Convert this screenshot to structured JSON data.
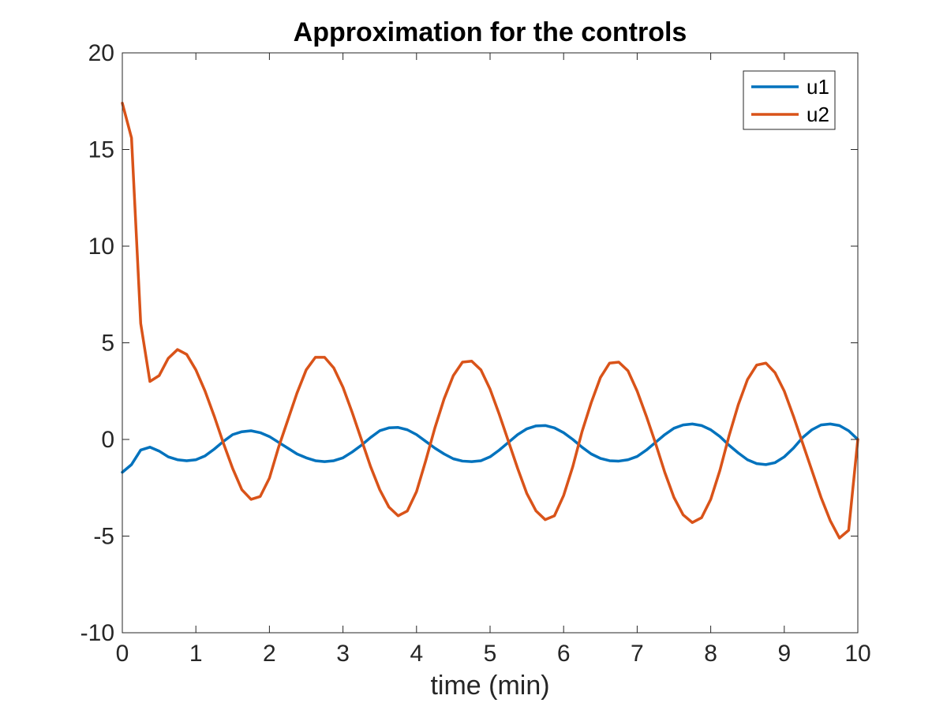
{
  "chart_data": {
    "type": "line",
    "title": "Approximation for the controls",
    "xlabel": "time (min)",
    "ylabel": "",
    "xlim": [
      0,
      10
    ],
    "ylim": [
      -10,
      20
    ],
    "xticks": [
      "0",
      "1",
      "2",
      "3",
      "4",
      "5",
      "6",
      "7",
      "8",
      "9",
      "10"
    ],
    "yticks": [
      "20",
      "15",
      "10",
      "5",
      "0",
      "-5",
      "-10"
    ],
    "grid": false,
    "legend_position": "top-right",
    "series": [
      {
        "name": "u1",
        "color": "#0072BD",
        "x": [
          0,
          0.125,
          0.25,
          0.375,
          0.5,
          0.625,
          0.75,
          0.875,
          1.0,
          1.125,
          1.25,
          1.375,
          1.5,
          1.625,
          1.75,
          1.875,
          2.0,
          2.125,
          2.25,
          2.375,
          2.5,
          2.625,
          2.75,
          2.875,
          3.0,
          3.125,
          3.25,
          3.375,
          3.5,
          3.625,
          3.75,
          3.875,
          4.0,
          4.125,
          4.25,
          4.375,
          4.5,
          4.625,
          4.75,
          4.875,
          5.0,
          5.125,
          5.25,
          5.375,
          5.5,
          5.625,
          5.75,
          5.875,
          6.0,
          6.125,
          6.25,
          6.375,
          6.5,
          6.625,
          6.75,
          6.875,
          7.0,
          7.125,
          7.25,
          7.375,
          7.5,
          7.625,
          7.75,
          7.875,
          8.0,
          8.125,
          8.25,
          8.375,
          8.5,
          8.625,
          8.75,
          8.875,
          9.0,
          9.125,
          9.25,
          9.375,
          9.5,
          9.625,
          9.75,
          9.875,
          10.0
        ],
        "y": [
          -1.7,
          -1.3,
          -0.55,
          -0.4,
          -0.6,
          -0.9,
          -1.05,
          -1.1,
          -1.05,
          -0.85,
          -0.5,
          -0.1,
          0.25,
          0.4,
          0.45,
          0.35,
          0.15,
          -0.15,
          -0.45,
          -0.75,
          -0.95,
          -1.1,
          -1.15,
          -1.1,
          -0.95,
          -0.65,
          -0.3,
          0.1,
          0.45,
          0.6,
          0.62,
          0.5,
          0.25,
          -0.1,
          -0.45,
          -0.75,
          -1.0,
          -1.12,
          -1.15,
          -1.1,
          -0.9,
          -0.55,
          -0.15,
          0.25,
          0.55,
          0.7,
          0.72,
          0.6,
          0.35,
          0.0,
          -0.4,
          -0.75,
          -0.98,
          -1.1,
          -1.12,
          -1.05,
          -0.88,
          -0.55,
          -0.15,
          0.25,
          0.58,
          0.75,
          0.8,
          0.72,
          0.5,
          0.15,
          -0.3,
          -0.7,
          -1.05,
          -1.25,
          -1.3,
          -1.2,
          -0.9,
          -0.45,
          0.1,
          0.5,
          0.75,
          0.8,
          0.72,
          0.45,
          0.0
        ]
      },
      {
        "name": "u2",
        "color": "#D95319",
        "x": [
          0,
          0.125,
          0.25,
          0.375,
          0.5,
          0.625,
          0.75,
          0.875,
          1.0,
          1.125,
          1.25,
          1.375,
          1.5,
          1.625,
          1.75,
          1.875,
          2.0,
          2.125,
          2.25,
          2.375,
          2.5,
          2.625,
          2.75,
          2.875,
          3.0,
          3.125,
          3.25,
          3.375,
          3.5,
          3.625,
          3.75,
          3.875,
          4.0,
          4.125,
          4.25,
          4.375,
          4.5,
          4.625,
          4.75,
          4.875,
          5.0,
          5.125,
          5.25,
          5.375,
          5.5,
          5.625,
          5.75,
          5.875,
          6.0,
          6.125,
          6.25,
          6.375,
          6.5,
          6.625,
          6.75,
          6.875,
          7.0,
          7.125,
          7.25,
          7.375,
          7.5,
          7.625,
          7.75,
          7.875,
          8.0,
          8.125,
          8.25,
          8.375,
          8.5,
          8.625,
          8.75,
          8.875,
          9.0,
          9.125,
          9.25,
          9.375,
          9.5,
          9.625,
          9.75,
          9.875,
          10.0
        ],
        "y": [
          17.4,
          15.6,
          6.0,
          3.0,
          3.3,
          4.2,
          4.65,
          4.4,
          3.6,
          2.5,
          1.2,
          -0.2,
          -1.5,
          -2.6,
          -3.1,
          -2.95,
          -2.0,
          -0.4,
          1.0,
          2.4,
          3.6,
          4.25,
          4.25,
          3.7,
          2.7,
          1.4,
          0.0,
          -1.4,
          -2.6,
          -3.5,
          -3.95,
          -3.7,
          -2.7,
          -1.1,
          0.6,
          2.1,
          3.3,
          4.0,
          4.05,
          3.6,
          2.6,
          1.3,
          -0.1,
          -1.5,
          -2.8,
          -3.7,
          -4.15,
          -3.95,
          -2.9,
          -1.4,
          0.4,
          1.9,
          3.2,
          3.95,
          4.0,
          3.55,
          2.5,
          1.2,
          -0.2,
          -1.7,
          -3.0,
          -3.9,
          -4.3,
          -4.05,
          -3.1,
          -1.6,
          0.2,
          1.8,
          3.1,
          3.85,
          3.95,
          3.45,
          2.5,
          1.2,
          -0.2,
          -1.6,
          -3.0,
          -4.2,
          -5.1,
          -4.7,
          0.0
        ]
      }
    ]
  }
}
